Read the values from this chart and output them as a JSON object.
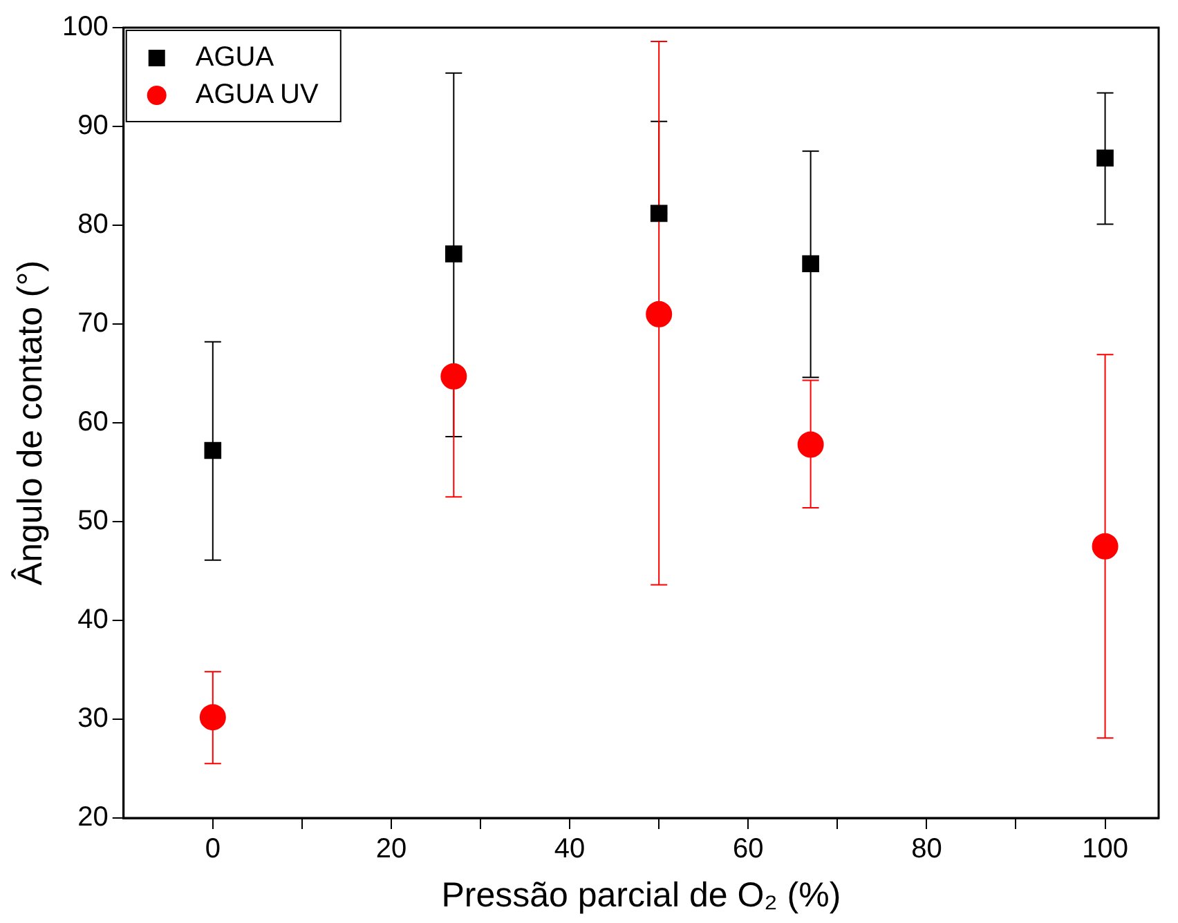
{
  "chart_data": {
    "type": "scatter",
    "xlabel": "Pressão parcial de O₂ (%)",
    "ylabel": "Ângulo de contato (°)",
    "xlim": [
      -10,
      106
    ],
    "xticks": [
      0,
      {
        "value": 10,
        "label": null
      },
      20,
      {
        "value": 30,
        "label": null
      },
      40,
      {
        "value": 50,
        "label": null
      },
      60,
      {
        "value": 70,
        "label": null
      },
      80,
      {
        "value": 90,
        "label": null
      },
      100
    ],
    "ylim": [
      20,
      100
    ],
    "yticks": [
      20,
      30,
      40,
      50,
      60,
      70,
      80,
      90,
      100
    ],
    "grid": false,
    "legend": "top left",
    "series": [
      {
        "name": "AGUA",
        "color": "#000000",
        "marker": "square",
        "x": [
          0,
          27,
          50,
          67,
          100
        ],
        "values": [
          57.2,
          77.1,
          81.2,
          76.1,
          86.8
        ],
        "errors": [
          [
            46.1,
            68.2
          ],
          [
            58.6,
            95.4
          ],
          [
            81.2,
            90.5
          ],
          [
            64.6,
            87.5
          ],
          [
            80.1,
            93.4
          ]
        ]
      },
      {
        "name": "AGUA UV",
        "color": "#ff0000",
        "marker": "circle",
        "x": [
          0,
          27,
          50,
          67,
          100
        ],
        "values": [
          30.2,
          64.7,
          71.0,
          57.8,
          47.5
        ],
        "errors": [
          [
            25.5,
            34.8
          ],
          [
            52.5,
            64.7
          ],
          [
            43.6,
            98.6
          ],
          [
            51.4,
            64.3
          ],
          [
            28.1,
            66.9
          ]
        ]
      }
    ]
  }
}
